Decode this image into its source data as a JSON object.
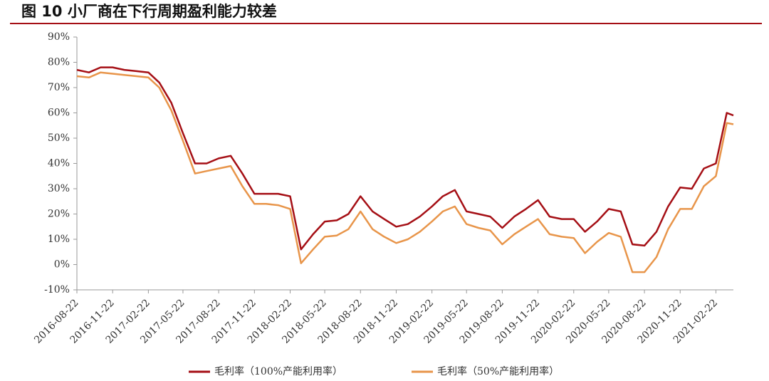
{
  "chart_data": {
    "type": "line",
    "title": "图 10 小厂商在下行周期盈利能力较差",
    "x": [
      "2016-08-22",
      "2016-09-22",
      "2016-10-22",
      "2016-11-22",
      "2016-12-22",
      "2017-01-22",
      "2017-02-22",
      "2017-03-22",
      "2017-04-22",
      "2017-05-22",
      "2017-06-22",
      "2017-07-22",
      "2017-08-22",
      "2017-09-22",
      "2017-10-22",
      "2017-11-22",
      "2017-12-22",
      "2018-01-22",
      "2018-02-22",
      "2018-03-22",
      "2018-04-22",
      "2018-05-22",
      "2018-06-22",
      "2018-07-22",
      "2018-08-22",
      "2018-09-22",
      "2018-10-22",
      "2018-11-22",
      "2018-12-22",
      "2019-01-22",
      "2019-02-22",
      "2019-03-22",
      "2019-04-22",
      "2019-05-22",
      "2019-06-22",
      "2019-07-22",
      "2019-08-22",
      "2019-09-22",
      "2019-10-22",
      "2019-11-22",
      "2019-12-22",
      "2020-01-22",
      "2020-02-22",
      "2020-03-22",
      "2020-04-22",
      "2020-05-22",
      "2020-06-22",
      "2020-07-22",
      "2020-08-22",
      "2020-09-22",
      "2020-10-22",
      "2020-11-22",
      "2020-12-22",
      "2021-01-22",
      "2021-02-22",
      "2021-03-22",
      "2021-04-08"
    ],
    "series": [
      {
        "name": "毛利率（100%产能利用率）",
        "color": "#a50f15",
        "values": [
          77,
          76,
          78,
          78,
          77,
          76.5,
          76,
          72,
          64,
          52,
          40,
          40,
          42,
          43,
          36,
          28,
          28,
          28,
          27,
          6,
          12,
          17,
          17.5,
          20,
          27,
          21,
          18,
          15,
          16,
          19,
          23,
          27,
          29.5,
          21,
          20,
          19,
          14.5,
          19,
          22,
          25.5,
          19,
          18,
          18,
          13,
          17,
          22,
          21,
          8,
          7.5,
          13,
          23,
          30.5,
          30,
          38,
          40,
          60,
          59
        ]
      },
      {
        "name": "毛利率（50%产能利用率）",
        "color": "#e8954a",
        "values": [
          74.5,
          74,
          76,
          75.5,
          75,
          74.5,
          74,
          70,
          61,
          49,
          36,
          37,
          38,
          39,
          31,
          24,
          24,
          23.5,
          22,
          0.5,
          6,
          11,
          11.5,
          14,
          21,
          14,
          11,
          8.5,
          10,
          13,
          17,
          21,
          23,
          16,
          14.5,
          13.5,
          8,
          12,
          15,
          18,
          12,
          11,
          10.5,
          4.5,
          9,
          12.5,
          11,
          -3,
          -3,
          3,
          14,
          22,
          22,
          31,
          35,
          56,
          55.5
        ]
      }
    ],
    "xlim": [
      "2016-08-22",
      "2021-04-08"
    ],
    "xticks": [
      "2016-08-22",
      "2016-11-22",
      "2017-02-22",
      "2017-05-22",
      "2017-08-22",
      "2017-11-22",
      "2018-02-22",
      "2018-05-22",
      "2018-08-22",
      "2018-11-22",
      "2019-02-22",
      "2019-05-22",
      "2019-08-22",
      "2019-11-22",
      "2020-02-22",
      "2020-05-22",
      "2020-08-22",
      "2020-11-22",
      "2021-02-22"
    ],
    "ylim": [
      -10,
      90
    ],
    "yticks": [
      {
        "value": -10,
        "label": "-10%"
      },
      {
        "value": 0,
        "label": "0%"
      },
      {
        "value": 10,
        "label": "10%"
      },
      {
        "value": 20,
        "label": "20%"
      },
      {
        "value": 30,
        "label": "30%"
      },
      {
        "value": 40,
        "label": "40%"
      },
      {
        "value": 50,
        "label": "50%"
      },
      {
        "value": 60,
        "label": "60%"
      },
      {
        "value": 70,
        "label": "70%"
      },
      {
        "value": 80,
        "label": "80%"
      },
      {
        "value": 90,
        "label": "90%"
      }
    ],
    "grid": false,
    "legend": "bottom"
  }
}
